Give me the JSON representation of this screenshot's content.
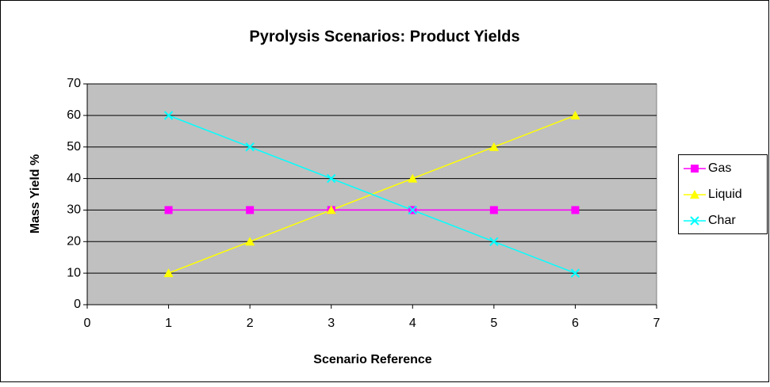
{
  "chart_data": {
    "type": "line",
    "title": "Pyrolysis Scenarios: Product Yields",
    "xlabel": "Scenario Reference",
    "ylabel": "Mass Yield %",
    "x": [
      1,
      2,
      3,
      4,
      5,
      6
    ],
    "series": [
      {
        "name": "Gas",
        "color": "#ff00ff",
        "marker": "square",
        "values": [
          30,
          30,
          30,
          30,
          30,
          30
        ]
      },
      {
        "name": "Liquid",
        "color": "#ffff00",
        "marker": "triangle",
        "values": [
          10,
          20,
          30,
          40,
          50,
          60
        ]
      },
      {
        "name": "Char",
        "color": "#00ffff",
        "marker": "x",
        "values": [
          60,
          50,
          40,
          30,
          20,
          10
        ]
      }
    ],
    "xlim": [
      0,
      7
    ],
    "xticks": [
      0,
      1,
      2,
      3,
      4,
      5,
      6,
      7
    ],
    "ylim": [
      0,
      70
    ],
    "yticks": [
      0,
      10,
      20,
      30,
      40,
      50,
      60,
      70
    ],
    "grid": true,
    "legend": "right",
    "plot_background": "#c0c0c0"
  }
}
